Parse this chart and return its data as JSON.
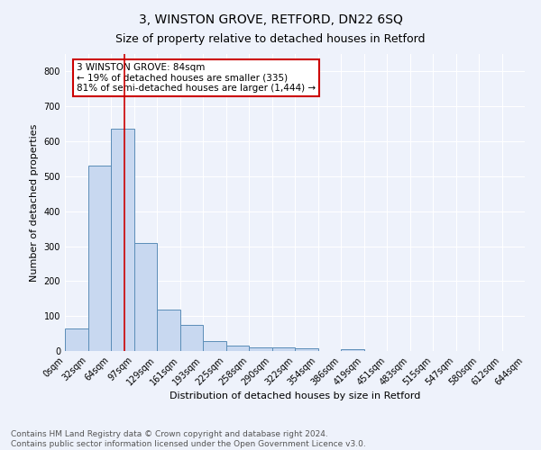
{
  "title": "3, WINSTON GROVE, RETFORD, DN22 6SQ",
  "subtitle": "Size of property relative to detached houses in Retford",
  "xlabel": "Distribution of detached houses by size in Retford",
  "ylabel": "Number of detached properties",
  "bin_labels": [
    "0sqm",
    "32sqm",
    "64sqm",
    "97sqm",
    "129sqm",
    "161sqm",
    "193sqm",
    "225sqm",
    "258sqm",
    "290sqm",
    "322sqm",
    "354sqm",
    "386sqm",
    "419sqm",
    "451sqm",
    "483sqm",
    "515sqm",
    "547sqm",
    "580sqm",
    "612sqm",
    "644sqm"
  ],
  "bar_heights": [
    65,
    530,
    635,
    310,
    118,
    75,
    28,
    15,
    10,
    10,
    8,
    0,
    5,
    0,
    0,
    0,
    0,
    0,
    0,
    0
  ],
  "bar_color": "#c8d8f0",
  "bar_edge_color": "#5b8db8",
  "vline_color": "#cc0000",
  "ylim": [
    0,
    850
  ],
  "yticks": [
    0,
    100,
    200,
    300,
    400,
    500,
    600,
    700,
    800
  ],
  "annotation_text": "3 WINSTON GROVE: 84sqm\n← 19% of detached houses are smaller (335)\n81% of semi-detached houses are larger (1,444) →",
  "annotation_box_color": "#ffffff",
  "annotation_box_edge": "#cc0000",
  "footer_text": "Contains HM Land Registry data © Crown copyright and database right 2024.\nContains public sector information licensed under the Open Government Licence v3.0.",
  "background_color": "#eef2fb",
  "grid_color": "#ffffff",
  "title_fontsize": 10,
  "subtitle_fontsize": 9,
  "axis_label_fontsize": 8,
  "tick_fontsize": 7,
  "annotation_fontsize": 7.5,
  "footer_fontsize": 6.5
}
